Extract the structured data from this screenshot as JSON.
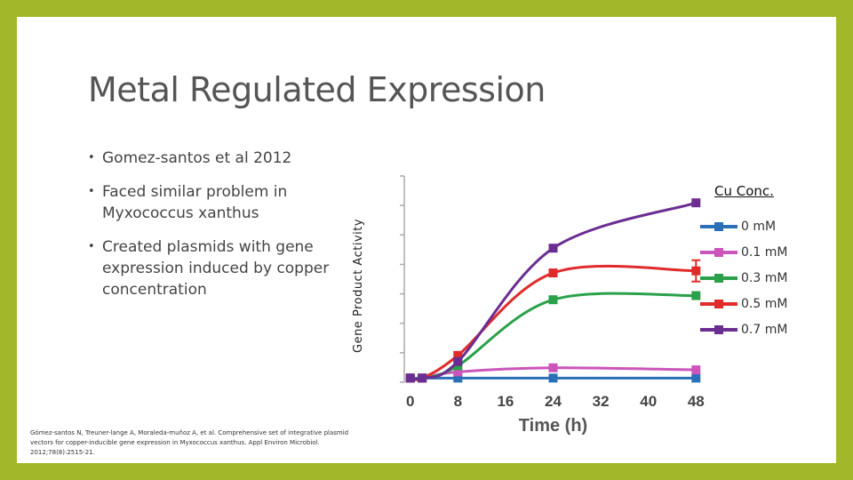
{
  "slide": {
    "title": "Metal Regulated Expression",
    "bullets": [
      "Gomez-santos et al 2012",
      "Faced similar problem in Myxococcus xanthus",
      "Created plasmids with gene expression induced by copper concentration"
    ],
    "citation": "Gómez-santos N, Treuner-lange A, Moraleda-muñoz A, et al. Comprehensive set of integrative plasmid vectors for copper-inducible gene expression in Myxococcus xanthus. Appl Environ Microbiol. 2012;78(8):2515-21."
  },
  "chart_data": {
    "type": "line",
    "title": "",
    "xlabel": "Time (h)",
    "ylabel": "Gene Product Activity",
    "legend_title": "Cu Conc.",
    "legend_placement": "right",
    "grid": false,
    "x_ticks": [
      0,
      8,
      16,
      24,
      32,
      40,
      48
    ],
    "xlim": [
      -1,
      49
    ],
    "ylim": [
      0,
      1
    ],
    "x": [
      0,
      2,
      8,
      24,
      48
    ],
    "series": [
      {
        "name": "0 mM",
        "color": "#2b6fb6",
        "values": [
          0.02,
          0.02,
          0.02,
          0.02,
          0.02
        ]
      },
      {
        "name": "0.1 mM",
        "color": "#cc55bb",
        "values": [
          0.02,
          0.02,
          0.05,
          0.07,
          0.06
        ]
      },
      {
        "name": "0.3 mM",
        "color": "#2aa04a",
        "values": [
          0.02,
          0.02,
          0.08,
          0.4,
          0.42
        ]
      },
      {
        "name": "0.5 mM",
        "color": "#e02b2b",
        "values": [
          0.02,
          0.02,
          0.13,
          0.53,
          0.54
        ]
      },
      {
        "name": "0.7 mM",
        "color": "#6a2d91",
        "values": [
          0.02,
          0.02,
          0.1,
          0.65,
          0.87
        ]
      }
    ]
  }
}
